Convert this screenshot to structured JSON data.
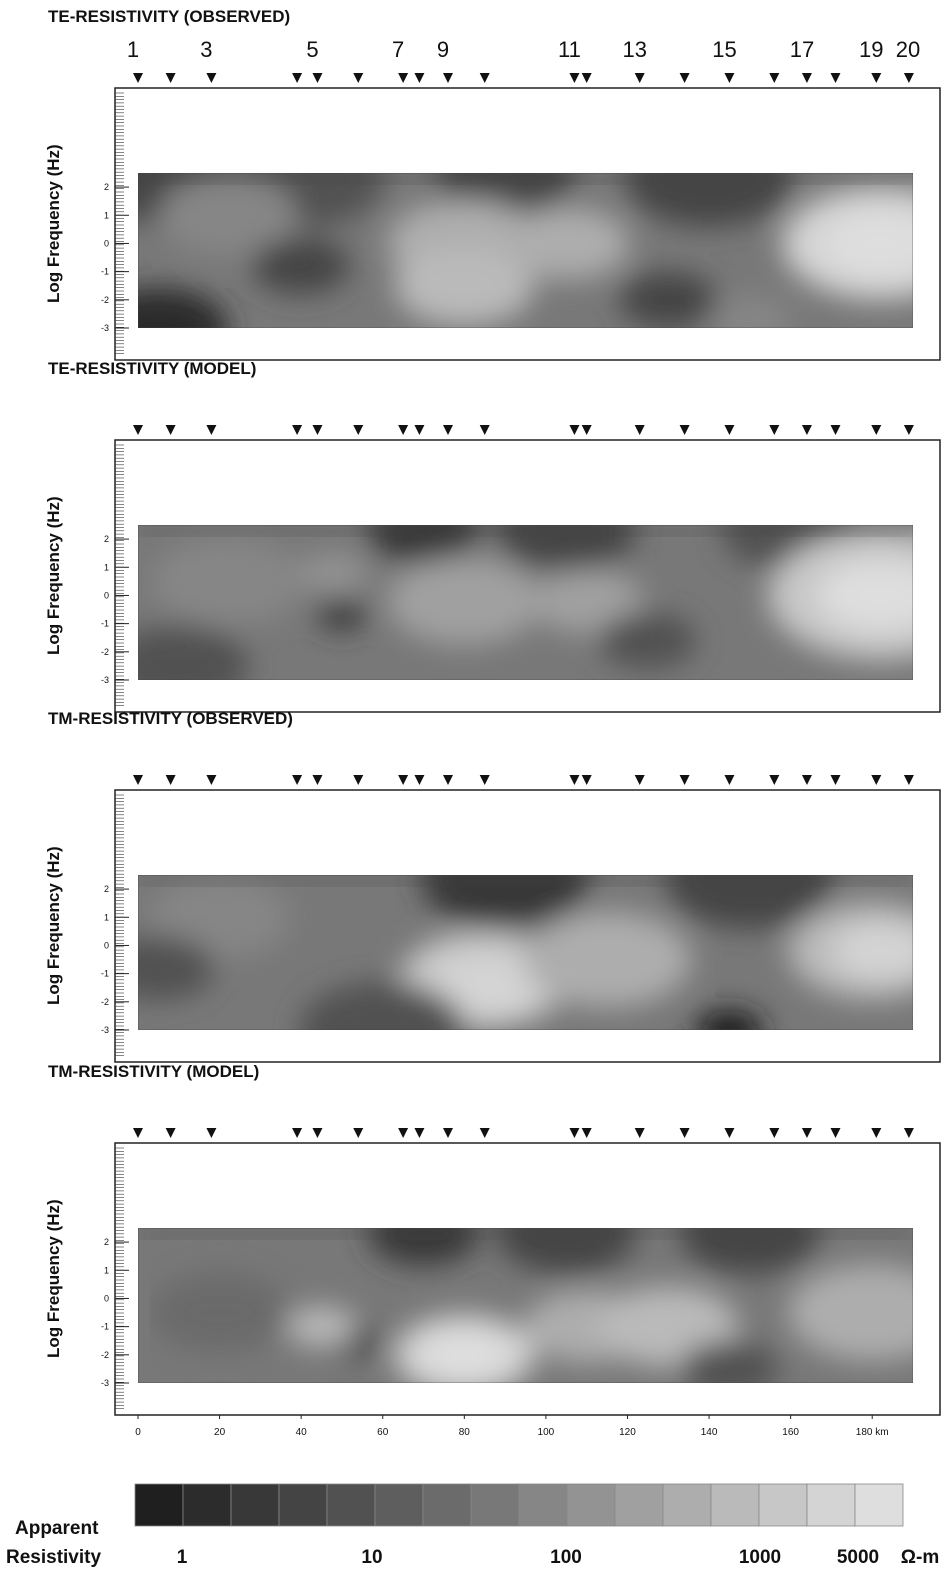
{
  "chart_data": {
    "type": "heatmap",
    "panels": [
      {
        "title": "TE-RESISTIVITY  (OBSERVED)",
        "ylabel": "Log Frequency (Hz)",
        "show_station_numbers": true
      },
      {
        "title": "TE-RESISTIVITY (MODEL)",
        "ylabel": "Log Frequency (Hz)",
        "show_station_numbers": false
      },
      {
        "title": "TM-RESISTIVITY (OBSERVED)",
        "ylabel": "Log Frequency (Hz)",
        "show_station_numbers": false
      },
      {
        "title": "TM-RESISTIVITY (MODEL)",
        "ylabel": "Log Frequency (Hz)",
        "show_station_numbers": false
      }
    ],
    "yticks": [
      "2",
      "1",
      "0",
      "-1",
      "-2",
      "-3"
    ],
    "ylim": [
      -3,
      2.5
    ],
    "station_numbers": [
      "1",
      "3",
      "5",
      "7",
      "9",
      "11",
      "13",
      "15",
      "17",
      "19",
      "20"
    ],
    "station_number_km": [
      0,
      18,
      44,
      65,
      76,
      107,
      123,
      145,
      164,
      181,
      190
    ],
    "stations_km": [
      0,
      8,
      18,
      39,
      44,
      54,
      65,
      69,
      76,
      85,
      107,
      110,
      123,
      134,
      145,
      156,
      164,
      171,
      181,
      189
    ],
    "xticks": [
      "0",
      "20",
      "40",
      "60",
      "80",
      "100",
      "120",
      "140",
      "160",
      "180 km"
    ],
    "xtick_values": [
      0,
      20,
      40,
      60,
      80,
      100,
      120,
      140,
      160,
      180
    ],
    "xlim": [
      0,
      190
    ],
    "legend": {
      "title_line1": "Apparent",
      "title_line2": "Resistivity",
      "labels": [
        "1",
        "10",
        "100",
        "1000",
        "5000"
      ],
      "unit": "Ω-m",
      "colors": [
        "#1f1f1f",
        "#2c2c2c",
        "#383838",
        "#444444",
        "#515151",
        "#5e5e5e",
        "#6b6b6b",
        "#787878",
        "#868686",
        "#939393",
        "#a0a0a0",
        "#adadad",
        "#bababa",
        "#c7c7c7",
        "#d4d4d4",
        "#dedede"
      ]
    }
  }
}
